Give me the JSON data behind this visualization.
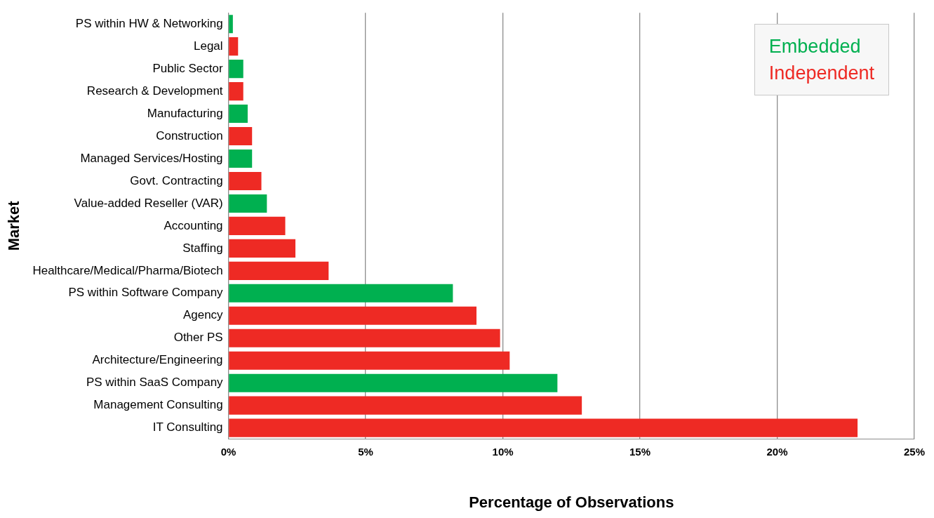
{
  "chart_data": {
    "type": "bar",
    "orientation": "horizontal",
    "xlabel": "Percentage of Observations",
    "ylabel": "Market",
    "categories": [
      "PS within HW & Networking",
      "Legal",
      "Public Sector",
      "Research & Development",
      "Manufacturing",
      "Construction",
      "Managed Services/Hosting",
      "Govt. Contracting",
      "Value-added Reseller (VAR)",
      "Accounting",
      "Staffing",
      "Healthcare/Medical/Pharma/Biotech",
      "PS within Software Company",
      "Agency",
      "Other PS",
      "Architecture/Engineering",
      "PS within SaaS Company",
      "Management Consulting",
      "IT Consulting"
    ],
    "series": [
      {
        "name": "Embedded",
        "color": "#00b050",
        "values": [
          0.16,
          null,
          0.54,
          null,
          0.7,
          null,
          0.86,
          null,
          1.4,
          null,
          null,
          null,
          8.18,
          null,
          null,
          null,
          11.99,
          null,
          null
        ]
      },
      {
        "name": "Independent",
        "color": "#ee2a24",
        "values": [
          null,
          0.35,
          null,
          0.54,
          null,
          0.86,
          null,
          1.2,
          null,
          2.07,
          2.44,
          3.65,
          null,
          9.04,
          9.9,
          10.25,
          null,
          12.88,
          22.93
        ]
      }
    ],
    "xlim": [
      0,
      25
    ],
    "xticks": [
      {
        "value": 0,
        "label": "0%"
      },
      {
        "value": 5,
        "label": "5%"
      },
      {
        "value": 10,
        "label": "10%"
      },
      {
        "value": 15,
        "label": "15%"
      },
      {
        "value": 20,
        "label": "20%"
      },
      {
        "value": 25,
        "label": "25%"
      }
    ],
    "grid": "x",
    "legend": "top right"
  }
}
